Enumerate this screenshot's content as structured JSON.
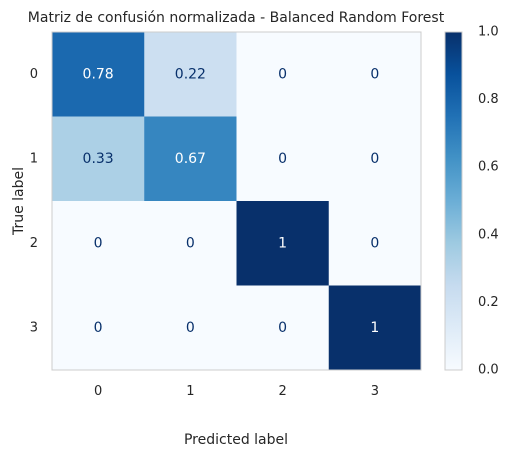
{
  "chart_data": {
    "type": "heatmap",
    "title": "Matriz de confusión normalizada - Balanced Random Forest",
    "xlabel": "Predicted label",
    "ylabel": "True label",
    "x_categories": [
      "0",
      "1",
      "2",
      "3"
    ],
    "y_categories": [
      "0",
      "1",
      "2",
      "3"
    ],
    "values": [
      [
        0.78,
        0.22,
        0,
        0
      ],
      [
        0.33,
        0.67,
        0,
        0
      ],
      [
        0,
        0,
        1,
        0
      ],
      [
        0,
        0,
        0,
        1
      ]
    ],
    "cell_labels": [
      [
        "0.78",
        "0.22",
        "0",
        "0"
      ],
      [
        "0.33",
        "0.67",
        "0",
        "0"
      ],
      [
        "0",
        "0",
        "1",
        "0"
      ],
      [
        "0",
        "0",
        "0",
        "1"
      ]
    ],
    "colormap": "Blues",
    "vmin": 0,
    "vmax": 1,
    "colorbar_ticks": [
      "0.0",
      "0.2",
      "0.4",
      "0.6",
      "0.8",
      "1.0"
    ],
    "grid": false,
    "dark_text_color": "#08306b",
    "light_text_color": "#ffffff"
  }
}
